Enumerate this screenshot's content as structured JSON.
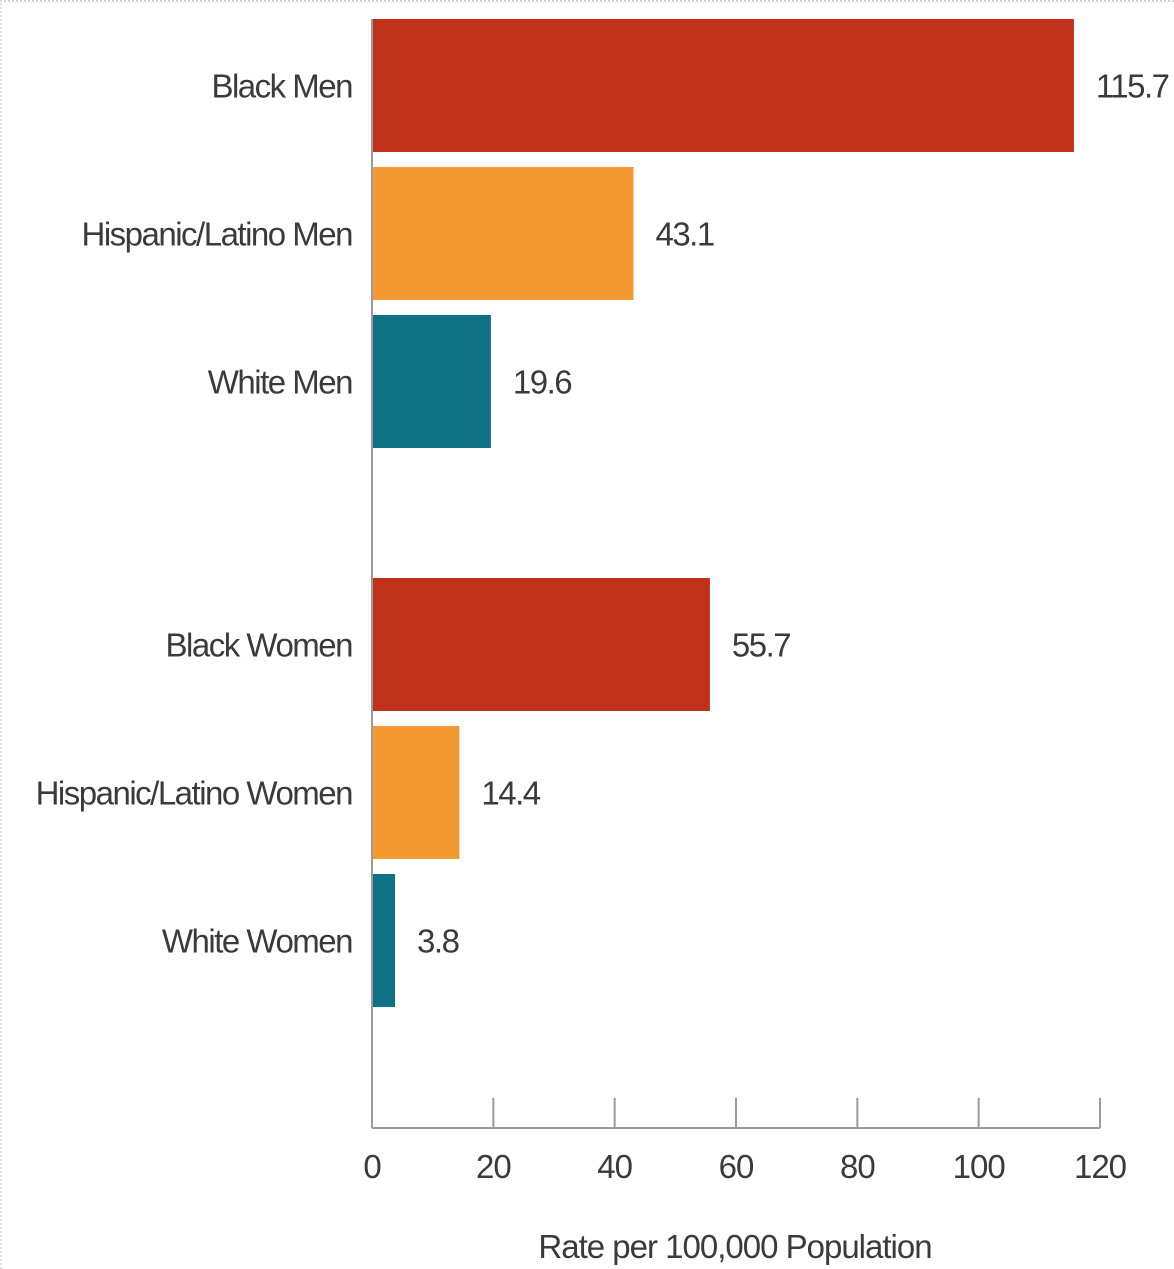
{
  "chart_data": {
    "type": "bar",
    "orientation": "horizontal",
    "xlabel": "Rate per 100,000 Population",
    "xlim": [
      0,
      120
    ],
    "xticks": [
      0,
      20,
      40,
      60,
      80,
      100,
      120
    ],
    "grid": false,
    "legend": "none",
    "groups": [
      {
        "items": [
          {
            "label": "Black Men",
            "value": 115.7,
            "value_label": "115.7",
            "color": "#c0311c"
          },
          {
            "label": "Hispanic/Latino Men",
            "value": 43.1,
            "value_label": "43.1",
            "color": "#f59a32"
          },
          {
            "label": "White Men",
            "value": 19.6,
            "value_label": "19.6",
            "color": "#0f7086"
          }
        ]
      },
      {
        "items": [
          {
            "label": "Black Women",
            "value": 55.7,
            "value_label": "55.7",
            "color": "#c0311c"
          },
          {
            "label": "Hispanic/Latino Women",
            "value": 14.4,
            "value_label": "14.4",
            "color": "#f59a32"
          },
          {
            "label": "White Women",
            "value": 3.8,
            "value_label": "3.8",
            "color": "#0f7086"
          }
        ]
      }
    ]
  }
}
